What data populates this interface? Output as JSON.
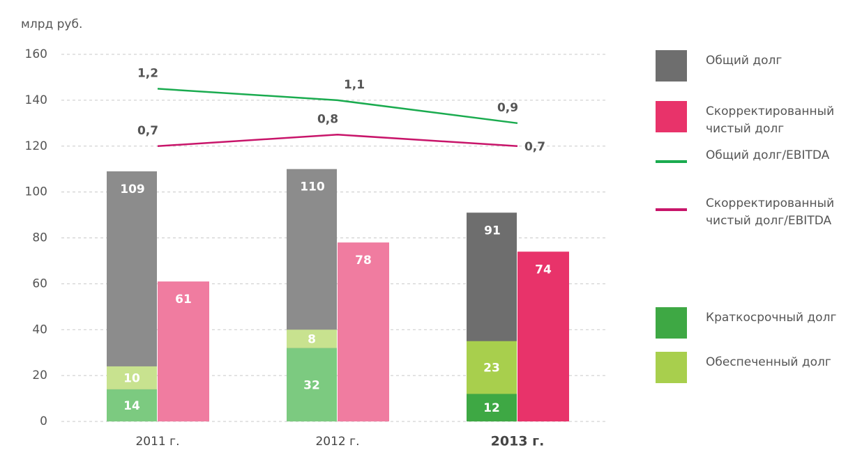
{
  "chart_data": {
    "type": "bar",
    "y_label": "млрд руб.",
    "categories": [
      "2011 г.",
      "2012 г.",
      "2013 г."
    ],
    "ylim": [
      0,
      160
    ],
    "yticks": [
      0,
      20,
      40,
      60,
      80,
      100,
      120,
      140,
      160
    ],
    "y2lim": [
      -1.7,
      1.5
    ],
    "grid": true,
    "legend": "right",
    "series": [
      {
        "name": "Общий долг",
        "kind": "bar",
        "color": "#6e6e6e",
        "point_colors": [
          "#8c8c8c",
          "#8c8c8c",
          "#6e6e6e"
        ],
        "values": [
          109,
          110,
          91
        ]
      },
      {
        "name": "Скорректированный чистый долг",
        "kind": "bar",
        "color": "#e8336a",
        "point_colors": [
          "#f07ca0",
          "#f07ca0",
          "#e8336a"
        ],
        "values": [
          61,
          78,
          74
        ]
      },
      {
        "name": "Общий долг/EBITDA",
        "kind": "line",
        "axis": "y2",
        "color": "#1aab4f",
        "values": [
          1.2,
          1.1,
          0.9
        ],
        "value_labels": [
          "1,2",
          "1,1",
          "0,9"
        ]
      },
      {
        "name": "Скорректированный чистый долг/EBITDA",
        "kind": "line",
        "axis": "y2",
        "color": "#c8156a",
        "values": [
          0.7,
          0.8,
          0.7
        ],
        "value_labels": [
          "0,7",
          "0,8",
          "0,7"
        ]
      },
      {
        "name": "Краткосрочный долг",
        "kind": "stack",
        "color": "#3ea844",
        "point_colors": [
          "#7cca80",
          "#7cca80",
          "#3ea844"
        ],
        "values": [
          14,
          32,
          12
        ]
      },
      {
        "name": "Обеспеченный долг",
        "kind": "stack",
        "color": "#a8cf4d",
        "point_colors": [
          "#c8e28f",
          "#c8e28f",
          "#a8cf4d"
        ],
        "values": [
          10,
          8,
          23
        ]
      }
    ]
  }
}
